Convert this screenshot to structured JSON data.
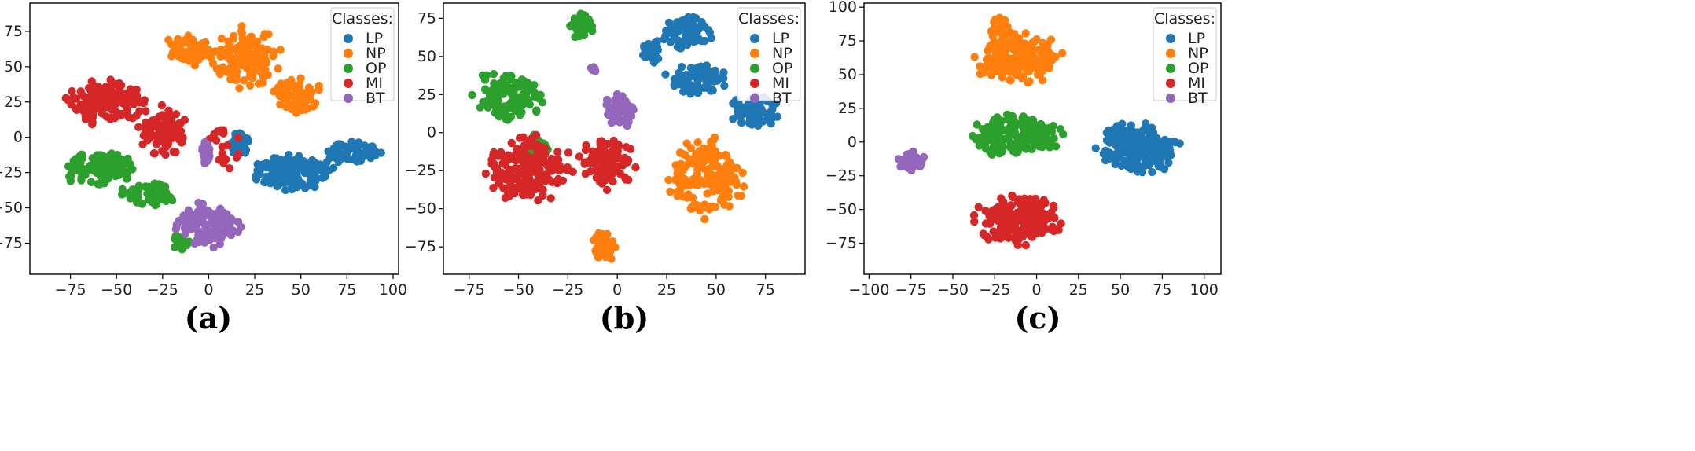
{
  "chart_data": [
    {
      "type": "scatter",
      "caption": "(a)",
      "legend_title": "Classes:",
      "legend_placement": "top-right",
      "xlim": [
        -97,
        103
      ],
      "ylim": [
        -97,
        95
      ],
      "xticks": [
        -75,
        -50,
        -25,
        0,
        25,
        50,
        75,
        100
      ],
      "yticks": [
        -75,
        -50,
        -25,
        0,
        25,
        50,
        75
      ],
      "series": [
        {
          "name": "LP",
          "color": "#1f77b4",
          "seed": 11,
          "clusters": [
            {
              "cx": 45,
              "cy": -25,
              "rx": 25,
              "ry": 14,
              "n": 160
            },
            {
              "cx": 78,
              "cy": -10,
              "rx": 16,
              "ry": 9,
              "n": 70
            },
            {
              "cx": 17,
              "cy": -5,
              "rx": 6,
              "ry": 12,
              "n": 35
            }
          ]
        },
        {
          "name": "NP",
          "color": "#ff7f0e",
          "seed": 22,
          "clusters": [
            {
              "cx": 20,
              "cy": 55,
              "rx": 20,
              "ry": 25,
              "n": 130
            },
            {
              "cx": 48,
              "cy": 30,
              "rx": 15,
              "ry": 14,
              "n": 70
            },
            {
              "cx": -10,
              "cy": 62,
              "rx": 14,
              "ry": 14,
              "n": 50
            }
          ]
        },
        {
          "name": "OP",
          "color": "#2ca02c",
          "seed": 33,
          "clusters": [
            {
              "cx": -60,
              "cy": -22,
              "rx": 25,
              "ry": 14,
              "n": 110
            },
            {
              "cx": -32,
              "cy": -40,
              "rx": 18,
              "ry": 9,
              "n": 60
            },
            {
              "cx": -15,
              "cy": -75,
              "rx": 6,
              "ry": 8,
              "n": 15
            }
          ]
        },
        {
          "name": "MI",
          "color": "#d62728",
          "seed": 44,
          "clusters": [
            {
              "cx": -55,
              "cy": 25,
              "rx": 25,
              "ry": 17,
              "n": 140
            },
            {
              "cx": -25,
              "cy": 5,
              "rx": 15,
              "ry": 20,
              "n": 80
            },
            {
              "cx": 8,
              "cy": -5,
              "rx": 10,
              "ry": 20,
              "n": 20
            }
          ]
        },
        {
          "name": "BT",
          "color": "#9467bd",
          "seed": 55,
          "clusters": [
            {
              "cx": 0,
              "cy": -62,
              "rx": 20,
              "ry": 17,
              "n": 110
            },
            {
              "cx": -2,
              "cy": -10,
              "rx": 5,
              "ry": 14,
              "n": 20
            }
          ]
        }
      ]
    },
    {
      "type": "scatter",
      "caption": "(b)",
      "legend_title": "Classes:",
      "legend_placement": "top-right",
      "xlim": [
        -88,
        95
      ],
      "ylim": [
        -93,
        85
      ],
      "xticks": [
        -75,
        -50,
        -25,
        0,
        25,
        50,
        75
      ],
      "yticks": [
        -75,
        -50,
        -25,
        0,
        25,
        50,
        75
      ],
      "series": [
        {
          "name": "LP",
          "color": "#1f77b4",
          "seed": 66,
          "clusters": [
            {
              "cx": 35,
              "cy": 65,
              "rx": 15,
              "ry": 12,
              "n": 80
            },
            {
              "cx": 40,
              "cy": 35,
              "rx": 17,
              "ry": 12,
              "n": 80
            },
            {
              "cx": 70,
              "cy": 15,
              "rx": 15,
              "ry": 12,
              "n": 70
            },
            {
              "cx": 17,
              "cy": 52,
              "rx": 6,
              "ry": 10,
              "n": 25
            }
          ]
        },
        {
          "name": "NP",
          "color": "#ff7f0e",
          "seed": 77,
          "clusters": [
            {
              "cx": 45,
              "cy": -30,
              "rx": 22,
              "ry": 28,
              "n": 170
            },
            {
              "cx": -7,
              "cy": -75,
              "rx": 7,
              "ry": 10,
              "n": 40
            }
          ]
        },
        {
          "name": "OP",
          "color": "#2ca02c",
          "seed": 88,
          "clusters": [
            {
              "cx": -55,
              "cy": 25,
              "rx": 20,
              "ry": 18,
              "n": 110
            },
            {
              "cx": -18,
              "cy": 70,
              "rx": 8,
              "ry": 9,
              "n": 40
            },
            {
              "cx": -40,
              "cy": -10,
              "rx": 10,
              "ry": 12,
              "n": 25
            }
          ]
        },
        {
          "name": "MI",
          "color": "#d62728",
          "seed": 99,
          "clusters": [
            {
              "cx": -45,
              "cy": -25,
              "rx": 25,
              "ry": 25,
              "n": 160
            },
            {
              "cx": -5,
              "cy": -20,
              "rx": 17,
              "ry": 18,
              "n": 100
            }
          ]
        },
        {
          "name": "BT",
          "color": "#9467bd",
          "seed": 111,
          "clusters": [
            {
              "cx": 0,
              "cy": 15,
              "rx": 12,
              "ry": 12,
              "n": 60
            },
            {
              "cx": -12,
              "cy": 42,
              "rx": 3,
              "ry": 3,
              "n": 8
            }
          ]
        }
      ]
    },
    {
      "type": "scatter",
      "caption": "(c)",
      "legend_title": "Classes:",
      "legend_placement": "top-right",
      "xlim": [
        -103,
        110
      ],
      "ylim": [
        -98,
        103
      ],
      "xticks": [
        -100,
        -75,
        -50,
        -25,
        0,
        25,
        50,
        75,
        100
      ],
      "yticks": [
        -75,
        -50,
        -25,
        0,
        25,
        50,
        75,
        100
      ],
      "series": [
        {
          "name": "LP",
          "color": "#1f77b4",
          "seed": 122,
          "clusters": [
            {
              "cx": 60,
              "cy": -5,
              "rx": 28,
              "ry": 22,
              "n": 190
            }
          ]
        },
        {
          "name": "NP",
          "color": "#ff7f0e",
          "seed": 133,
          "clusters": [
            {
              "cx": -10,
              "cy": 62,
              "rx": 30,
              "ry": 20,
              "n": 190
            },
            {
              "cx": -20,
              "cy": 85,
              "rx": 10,
              "ry": 8,
              "n": 30
            }
          ]
        },
        {
          "name": "OP",
          "color": "#2ca02c",
          "seed": 144,
          "clusters": [
            {
              "cx": -12,
              "cy": 5,
              "rx": 30,
              "ry": 17,
              "n": 190
            }
          ]
        },
        {
          "name": "MI",
          "color": "#d62728",
          "seed": 155,
          "clusters": [
            {
              "cx": -10,
              "cy": -58,
              "rx": 30,
              "ry": 20,
              "n": 200
            }
          ]
        },
        {
          "name": "BT",
          "color": "#9467bd",
          "seed": 166,
          "clusters": [
            {
              "cx": -76,
              "cy": -13,
              "rx": 10,
              "ry": 9,
              "n": 35
            }
          ]
        }
      ]
    }
  ]
}
